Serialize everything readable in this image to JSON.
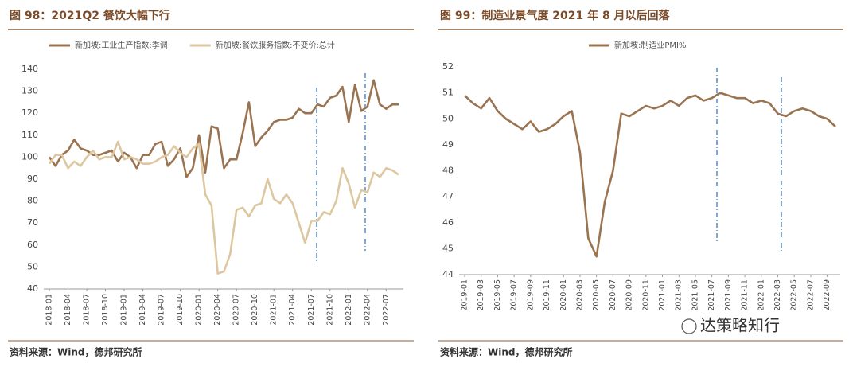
{
  "chart_data": [
    {
      "type": "line",
      "title": "图 98：2021Q2 餐饮大幅下行",
      "source": "资料来源：Wind，德邦研究所",
      "categories": [
        "2018-01",
        null,
        null,
        "2018-04",
        null,
        null,
        "2018-07",
        null,
        null,
        "2018-10",
        null,
        null,
        "2019-01",
        null,
        null,
        "2019-04",
        null,
        null,
        "2019-07",
        null,
        null,
        "2019-10",
        null,
        null,
        "2020-01",
        null,
        null,
        "2020-04",
        null,
        null,
        "2020-07",
        null,
        null,
        "2020-10",
        null,
        null,
        "2021-01",
        null,
        null,
        "2021-04",
        null,
        null,
        "2021-07",
        null,
        null,
        "2021-10",
        null,
        null,
        "2022-01",
        null,
        null,
        "2022-04",
        null,
        null,
        "2022-07",
        null,
        null
      ],
      "series": [
        {
          "name": "新加坡:工业生产指数:季调",
          "color": "#9a7350",
          "values": [
            100,
            96,
            101,
            103,
            108,
            104,
            103,
            101,
            101,
            102,
            103,
            98,
            102,
            100,
            95,
            101,
            101,
            106,
            107,
            96,
            99,
            104,
            91,
            95,
            110,
            93,
            114,
            113,
            95,
            99,
            99,
            111,
            125,
            105,
            109,
            112,
            116,
            117,
            117,
            118,
            122,
            120,
            120,
            124,
            123,
            127,
            128,
            132,
            116,
            133,
            121,
            123,
            135,
            124,
            122,
            124,
            124
          ]
        },
        {
          "name": "新加坡:餐饮服务指数:不变价:总计",
          "color": "#dcc7a0",
          "values": [
            97,
            101,
            101,
            95,
            98,
            96,
            100,
            103,
            99,
            100,
            100,
            107,
            99,
            100,
            99,
            97,
            97,
            98,
            100,
            101,
            105,
            102,
            100,
            104,
            106,
            83,
            78,
            47,
            48,
            56,
            76,
            77,
            73,
            78,
            79,
            90,
            81,
            79,
            83,
            79,
            70,
            61,
            71,
            71,
            75,
            74,
            80,
            95,
            88,
            77,
            85,
            84,
            93,
            91,
            95,
            94,
            92
          ]
        }
      ],
      "ylim": [
        40,
        140
      ],
      "yticks": [
        40,
        50,
        60,
        70,
        80,
        90,
        100,
        110,
        120,
        130,
        140
      ]
    },
    {
      "type": "line",
      "title": "图 99：制造业景气度 2021 年 8 月以后回落",
      "source": "资料来源：Wind，德邦研究所",
      "categories": [
        "2019-01",
        null,
        "2019-03",
        null,
        "2019-05",
        null,
        "2019-07",
        null,
        "2019-09",
        null,
        "2019-11",
        null,
        "2020-01",
        null,
        "2020-03",
        null,
        "2020-05",
        null,
        "2020-07",
        null,
        "2020-09",
        null,
        "2020-11",
        null,
        "2021-01",
        null,
        "2021-03",
        null,
        "2021-05",
        null,
        "2021-07",
        null,
        "2021-09",
        null,
        "2021-11",
        null,
        "2022-01",
        null,
        "2022-03",
        null,
        "2022-05",
        null,
        "2022-07",
        null,
        "2022-09",
        null
      ],
      "series": [
        {
          "name": "新加坡:制造业PMI%",
          "color": "#9a7350",
          "values": [
            50.9,
            50.6,
            50.4,
            50.8,
            50.3,
            50.0,
            49.8,
            49.6,
            49.9,
            49.5,
            49.6,
            49.8,
            50.1,
            50.3,
            48.7,
            45.4,
            44.7,
            46.8,
            48.0,
            50.2,
            50.1,
            50.3,
            50.5,
            50.4,
            50.5,
            50.7,
            50.5,
            50.8,
            50.9,
            50.7,
            50.8,
            51.0,
            50.9,
            50.8,
            50.8,
            50.6,
            50.7,
            50.6,
            50.2,
            50.1,
            50.3,
            50.4,
            50.3,
            50.1,
            50.0,
            49.7
          ]
        }
      ],
      "ylim": [
        44,
        52
      ],
      "yticks": [
        44,
        45,
        46,
        47,
        48,
        49,
        50,
        51,
        52
      ]
    }
  ],
  "watermark": "达策略知行"
}
